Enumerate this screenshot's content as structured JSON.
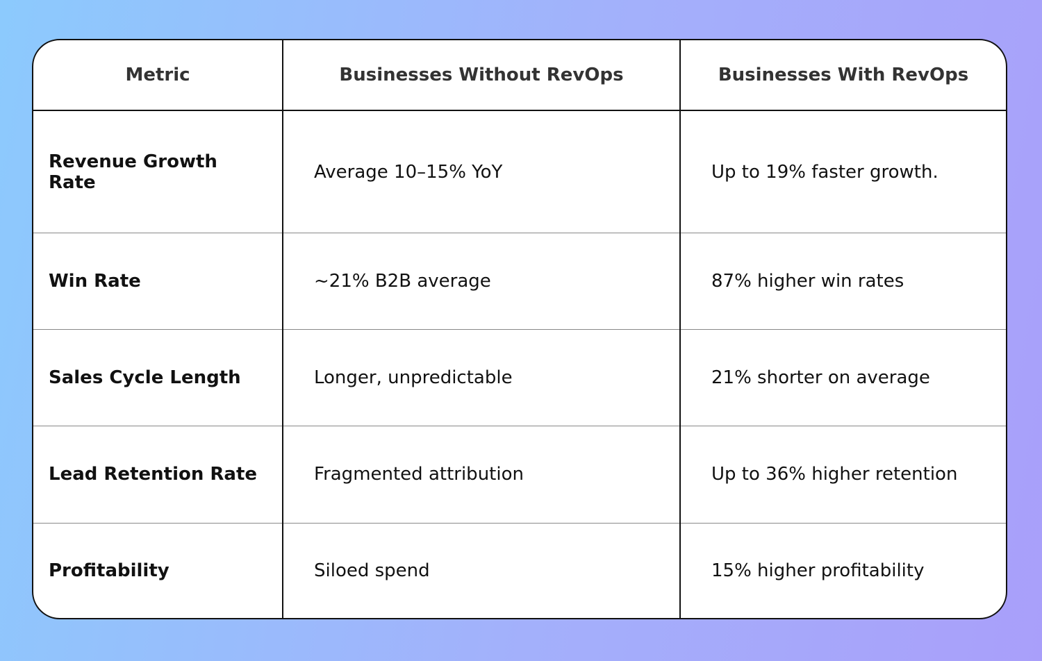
{
  "table": {
    "header": [
      "Metric",
      "Businesses Without RevOps",
      "Businesses With RevOps"
    ],
    "rows": [
      [
        "Revenue Growth Rate",
        "Average 10–15% YoY",
        "Up to 19% faster growth."
      ],
      [
        "Win Rate",
        "~21% B2B average",
        "87% higher win rates"
      ],
      [
        "Sales Cycle Length",
        "Longer, unpredictable",
        "21% shorter on average"
      ],
      [
        "Lead Retention Rate",
        "Fragmented attribution",
        "Up to 36% higher retention"
      ],
      [
        "Profitability",
        "Siloed spend",
        "15% higher profitability"
      ]
    ]
  }
}
